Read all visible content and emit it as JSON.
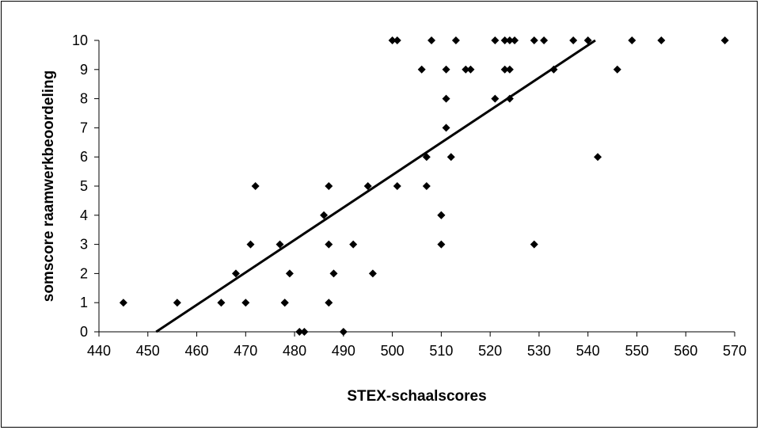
{
  "chart_data": {
    "type": "scatter",
    "title": "",
    "xlabel": "STEX-schaalscores",
    "ylabel": "somscore raamwerkbeoordeling",
    "xlim": [
      440,
      570
    ],
    "ylim": [
      0,
      10
    ],
    "x_ticks": [
      440,
      450,
      460,
      470,
      480,
      490,
      500,
      510,
      520,
      530,
      540,
      550,
      560,
      570
    ],
    "y_ticks": [
      0,
      1,
      2,
      3,
      4,
      5,
      6,
      7,
      8,
      9,
      10
    ],
    "grid": false,
    "legend": "none",
    "marker": "diamond",
    "marker_color": "#000000",
    "points": [
      [
        445,
        1
      ],
      [
        456,
        1
      ],
      [
        465,
        1
      ],
      [
        468,
        2
      ],
      [
        470,
        1
      ],
      [
        471,
        3
      ],
      [
        472,
        5
      ],
      [
        477,
        3
      ],
      [
        478,
        1
      ],
      [
        478,
        1
      ],
      [
        479,
        2
      ],
      [
        481,
        0
      ],
      [
        482,
        0
      ],
      [
        486,
        4
      ],
      [
        487,
        5
      ],
      [
        487,
        3
      ],
      [
        487,
        1
      ],
      [
        488,
        2
      ],
      [
        490,
        0
      ],
      [
        492,
        3
      ],
      [
        495,
        5
      ],
      [
        496,
        2
      ],
      [
        500,
        10
      ],
      [
        501,
        10
      ],
      [
        501,
        5
      ],
      [
        506,
        9
      ],
      [
        507,
        6
      ],
      [
        507,
        5
      ],
      [
        508,
        10
      ],
      [
        510,
        4
      ],
      [
        510,
        4
      ],
      [
        510,
        3
      ],
      [
        511,
        9
      ],
      [
        511,
        8
      ],
      [
        511,
        7
      ],
      [
        512,
        6
      ],
      [
        513,
        10
      ],
      [
        515,
        9
      ],
      [
        516,
        9
      ],
      [
        521,
        10
      ],
      [
        521,
        8
      ],
      [
        523,
        10
      ],
      [
        523,
        9
      ],
      [
        524,
        10
      ],
      [
        524,
        9
      ],
      [
        524,
        8
      ],
      [
        525,
        10
      ],
      [
        529,
        10
      ],
      [
        529,
        3
      ],
      [
        531,
        10
      ],
      [
        533,
        9
      ],
      [
        537,
        10
      ],
      [
        540,
        10
      ],
      [
        542,
        6
      ],
      [
        546,
        9
      ],
      [
        549,
        10
      ],
      [
        555,
        10
      ],
      [
        568,
        10
      ]
    ],
    "trendline": {
      "type": "linear",
      "color": "#000000",
      "from": [
        451.7,
        0
      ],
      "to": [
        541.5,
        10
      ]
    }
  }
}
